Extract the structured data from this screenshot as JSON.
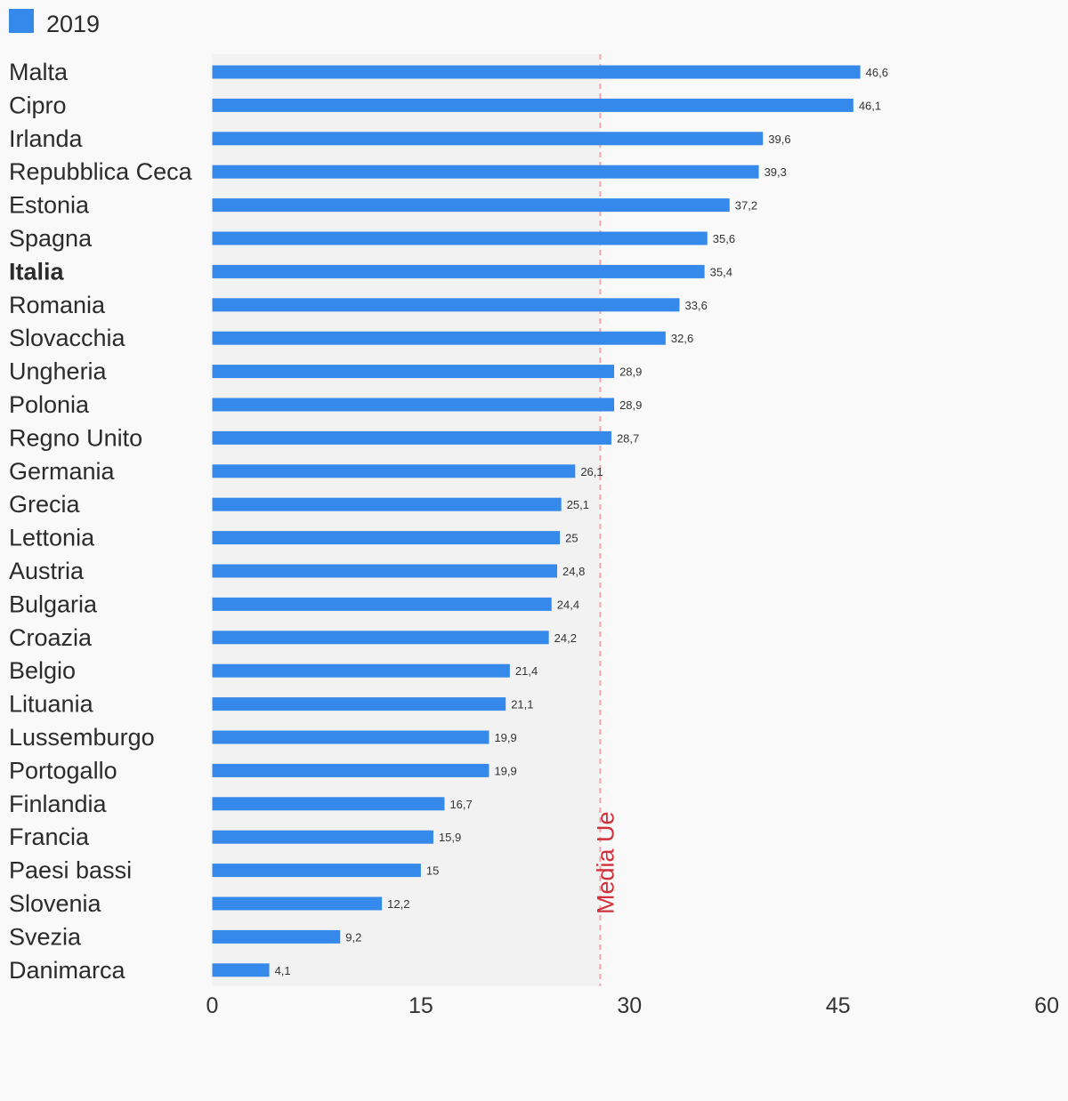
{
  "chart_data": {
    "type": "bar",
    "orientation": "horizontal",
    "legend": {
      "position": "top-left",
      "entries": [
        {
          "name": "2019",
          "color": "#3589ea"
        }
      ]
    },
    "categories": [
      "Malta",
      "Cipro",
      "Irlanda",
      "Repubblica Ceca",
      "Estonia",
      "Spagna",
      "Italia",
      "Romania",
      "Slovacchia",
      "Ungheria",
      "Polonia",
      "Regno Unito",
      "Germania",
      "Grecia",
      "Lettonia",
      "Austria",
      "Bulgaria",
      "Croazia",
      "Belgio",
      "Lituania",
      "Lussemburgo",
      "Portogallo",
      "Finlandia",
      "Francia",
      "Paesi bassi",
      "Slovenia",
      "Svezia",
      "Danimarca"
    ],
    "highlighted_category": "Italia",
    "series": [
      {
        "name": "2019",
        "color": "#3589ea",
        "values": [
          46.6,
          46.1,
          39.6,
          39.3,
          37.2,
          35.6,
          35.4,
          33.6,
          32.6,
          28.9,
          28.9,
          28.7,
          26.1,
          25.1,
          25,
          24.8,
          24.4,
          24.2,
          21.4,
          21.1,
          19.9,
          19.9,
          16.7,
          15.9,
          15,
          12.2,
          9.2,
          4.1
        ],
        "value_labels": [
          "46,6",
          "46,1",
          "39,6",
          "39,3",
          "37,2",
          "35,6",
          "35,4",
          "33,6",
          "32,6",
          "28,9",
          "28,9",
          "28,7",
          "26,1",
          "25,1",
          "25",
          "24,8",
          "24,4",
          "24,2",
          "21,4",
          "21,1",
          "19,9",
          "19,9",
          "16,7",
          "15,9",
          "15",
          "12,2",
          "9,2",
          "4,1"
        ]
      }
    ],
    "x_axis": {
      "range": [
        0,
        60
      ],
      "ticks": [
        0,
        15,
        30,
        45,
        60
      ],
      "tick_labels": [
        "0",
        "15",
        "30",
        "45",
        "60"
      ]
    },
    "reference_line": {
      "label": "Media Ue",
      "value": 27.9,
      "color": "#d0313b",
      "style": "dashed"
    },
    "shaded_region": {
      "from": 0,
      "to": 27.9,
      "color": "#f2f2f2"
    },
    "grid": false
  }
}
